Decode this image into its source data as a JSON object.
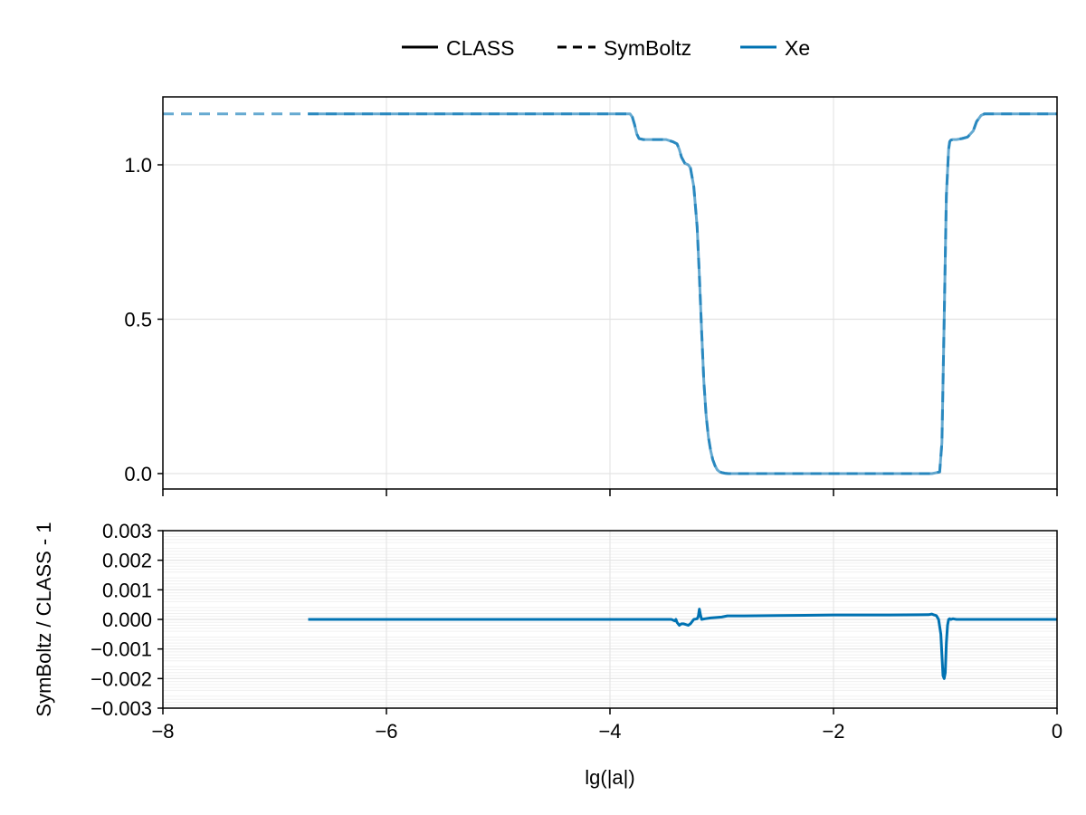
{
  "legend": {
    "entries": [
      {
        "label": "CLASS",
        "style": "solid",
        "color": "#000000"
      },
      {
        "label": "SymBoltz",
        "style": "dashed",
        "color": "#000000"
      },
      {
        "label": "Xe",
        "style": "solid",
        "color": "#0072b2"
      }
    ],
    "placement": "top-center"
  },
  "chart_data": [
    {
      "type": "line",
      "panel": "top",
      "xlim": [
        -8,
        0
      ],
      "ylim": [
        -0.05,
        1.22
      ],
      "yticks": [
        0.0,
        0.5,
        1.0
      ],
      "ytick_labels": [
        "0.0",
        "0.5",
        "1.0"
      ],
      "xticks": [
        -8,
        -6,
        -4,
        -2,
        0
      ],
      "grid": true,
      "series": [
        {
          "name": "Xe",
          "source": "SymBoltz",
          "style": "dashed",
          "color": "#0072b2",
          "x": [
            -8.0,
            -6.7,
            -4.0,
            -3.82,
            -3.8,
            -3.78,
            -3.76,
            -3.74,
            -3.7,
            -3.6,
            -3.5,
            -3.44,
            -3.4,
            -3.38,
            -3.36,
            -3.33,
            -3.3,
            -3.28,
            -3.25,
            -3.22,
            -3.2,
            -3.18,
            -3.16,
            -3.14,
            -3.12,
            -3.1,
            -3.08,
            -3.06,
            -3.04,
            -3.02,
            -3.0,
            -2.97,
            -2.94,
            -2.9,
            -2.8,
            -2.5,
            -2.0,
            -1.5,
            -1.12,
            -1.05,
            -1.03,
            -1.01,
            -0.99,
            -0.97,
            -0.96,
            -0.95,
            -0.93,
            -0.9,
            -0.85,
            -0.8,
            -0.75,
            -0.72,
            -0.68,
            -0.65,
            -0.6,
            -0.5,
            -0.3,
            0.0
          ],
          "values": [
            1.165,
            1.165,
            1.165,
            1.165,
            1.155,
            1.13,
            1.1,
            1.085,
            1.082,
            1.082,
            1.082,
            1.075,
            1.068,
            1.05,
            1.025,
            1.005,
            1.0,
            0.99,
            0.93,
            0.8,
            0.64,
            0.46,
            0.3,
            0.19,
            0.12,
            0.075,
            0.045,
            0.025,
            0.012,
            0.006,
            0.003,
            0.001,
            0.0,
            0.0,
            0.0,
            0.0,
            0.0,
            0.0,
            0.0,
            0.005,
            0.1,
            0.5,
            0.9,
            1.05,
            1.075,
            1.08,
            1.082,
            1.082,
            1.085,
            1.09,
            1.11,
            1.14,
            1.16,
            1.165,
            1.165,
            1.165,
            1.165,
            1.165
          ]
        },
        {
          "name": "Xe",
          "source": "CLASS",
          "style": "solid",
          "color": "#0072b2",
          "x": [
            -6.7,
            -4.0,
            -3.82,
            -3.8,
            -3.78,
            -3.76,
            -3.74,
            -3.7,
            -3.6,
            -3.5,
            -3.44,
            -3.4,
            -3.38,
            -3.36,
            -3.33,
            -3.3,
            -3.28,
            -3.25,
            -3.22,
            -3.2,
            -3.18,
            -3.16,
            -3.14,
            -3.12,
            -3.1,
            -3.08,
            -3.06,
            -3.04,
            -3.02,
            -3.0,
            -2.97,
            -2.94,
            -2.9,
            -2.8,
            -2.5,
            -2.0,
            -1.5,
            -1.12,
            -1.05,
            -1.03,
            -1.01,
            -0.99,
            -0.97,
            -0.96,
            -0.95,
            -0.93,
            -0.9,
            -0.85,
            -0.8,
            -0.75,
            -0.72,
            -0.68,
            -0.65,
            -0.6,
            -0.5,
            -0.3,
            0.0
          ],
          "values": [
            1.165,
            1.165,
            1.165,
            1.155,
            1.13,
            1.1,
            1.085,
            1.082,
            1.082,
            1.082,
            1.075,
            1.068,
            1.05,
            1.025,
            1.005,
            1.0,
            0.99,
            0.93,
            0.8,
            0.64,
            0.46,
            0.3,
            0.19,
            0.12,
            0.075,
            0.045,
            0.025,
            0.012,
            0.006,
            0.003,
            0.001,
            0.0,
            0.0,
            0.0,
            0.0,
            0.0,
            0.0,
            0.0,
            0.005,
            0.1,
            0.5,
            0.9,
            1.05,
            1.075,
            1.08,
            1.082,
            1.082,
            1.085,
            1.09,
            1.11,
            1.14,
            1.16,
            1.165,
            1.165,
            1.165,
            1.165,
            1.165
          ]
        }
      ]
    },
    {
      "type": "line",
      "panel": "bottom",
      "xlabel": "lg(|a|)",
      "ylabel": "SymBoltz / CLASS - 1",
      "xlim": [
        -8,
        0
      ],
      "ylim": [
        -0.003,
        0.003
      ],
      "xticks": [
        -8,
        -6,
        -4,
        -2,
        0
      ],
      "xtick_labels": [
        "−8",
        "−6",
        "−4",
        "−2",
        "0"
      ],
      "yticks": [
        -0.003,
        -0.002,
        -0.001,
        0.0,
        0.001,
        0.002,
        0.003
      ],
      "ytick_labels": [
        "−0.003",
        "−0.002",
        "−0.001",
        "0.000",
        "0.001",
        "0.002",
        "0.003"
      ],
      "grid": true,
      "series": [
        {
          "name": "Xe",
          "color": "#0072b2",
          "x": [
            -6.7,
            -4.0,
            -3.8,
            -3.5,
            -3.45,
            -3.42,
            -3.41,
            -3.4,
            -3.38,
            -3.36,
            -3.34,
            -3.3,
            -3.28,
            -3.25,
            -3.22,
            -3.21,
            -3.2,
            -3.19,
            -3.18,
            -3.15,
            -3.1,
            -3.0,
            -2.95,
            -2.9,
            -2.8,
            -2.5,
            -2.0,
            -1.5,
            -1.15,
            -1.12,
            -1.1,
            -1.08,
            -1.06,
            -1.04,
            -1.03,
            -1.02,
            -1.01,
            -1.0,
            -0.99,
            -0.98,
            -0.97,
            -0.96,
            -0.95,
            -0.93,
            -0.9,
            -0.85,
            -0.8,
            -0.6,
            -0.3,
            0.0
          ],
          "values": [
            0.0,
            0.0,
            0.0,
            0.0,
            0.0,
            -5e-05,
            0.0,
            -0.0001,
            -0.0002,
            -0.00015,
            -0.00015,
            -0.0002,
            -0.00015,
            0.0,
            2e-05,
            0.0001,
            0.00035,
            0.00015,
            0.0,
            2e-05,
            5e-05,
            8e-05,
            0.00012,
            0.00012,
            0.00012,
            0.00013,
            0.00015,
            0.00015,
            0.00016,
            0.00018,
            0.00015,
            0.00013,
            0.0,
            -0.0005,
            -0.0012,
            -0.0019,
            -0.002,
            -0.0018,
            -0.0008,
            -0.0002,
            0.0,
            2e-05,
            0.0,
            2e-05,
            0.0,
            0.0,
            0.0,
            0.0,
            0.0,
            0.0
          ]
        }
      ]
    }
  ]
}
